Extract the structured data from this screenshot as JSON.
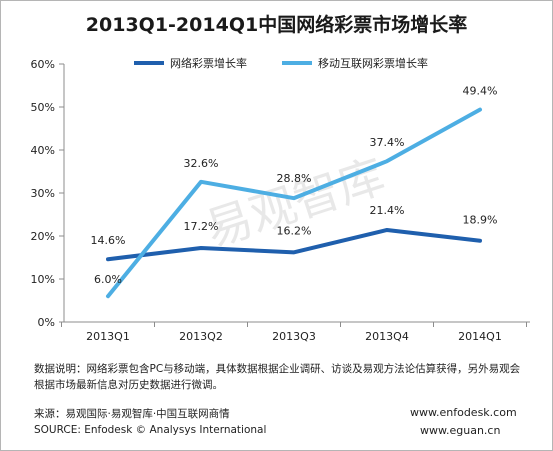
{
  "title": "2013Q1-2014Q1中国网络彩票市场增长率",
  "watermark": "易观智库",
  "chart_data": {
    "type": "line",
    "title": "2013Q1-2014Q1中国网络彩票市场增长率",
    "categories": [
      "2013Q1",
      "2013Q2",
      "2013Q3",
      "2013Q4",
      "2014Q1"
    ],
    "ylim": [
      0,
      60
    ],
    "yticks": [
      0,
      10,
      20,
      30,
      40,
      50,
      60
    ],
    "ytick_labels": [
      "0%",
      "10%",
      "20%",
      "30%",
      "40%",
      "50%",
      "60%"
    ],
    "grid": false,
    "legend_position": "top-center",
    "series": [
      {
        "name": "网络彩票增长率",
        "color": "#1f5fad",
        "values": [
          14.6,
          17.2,
          16.2,
          21.4,
          18.9
        ],
        "labels": [
          "14.6%",
          "17.2%",
          "16.2%",
          "21.4%",
          "18.9%"
        ]
      },
      {
        "name": "移动互联网彩票增长率",
        "color": "#4daee3",
        "values": [
          6.0,
          32.6,
          28.8,
          37.4,
          49.4
        ],
        "labels": [
          "6.0%",
          "32.6%",
          "28.8%",
          "37.4%",
          "49.4%"
        ]
      }
    ]
  },
  "footer": {
    "note": "数据说明：网络彩票包含PC与移动端，具体数据根据企业调研、访谈及易观方法论估算获得，另外易观会根据市场最新信息对历史数据进行微调。",
    "source_cn": "来源：易观国际·易观智库·中国互联网商情",
    "source_en": "SOURCE: Enfodesk © Analysys International",
    "url1": "www.enfodesk.com",
    "url2": "www.eguan.cn"
  }
}
